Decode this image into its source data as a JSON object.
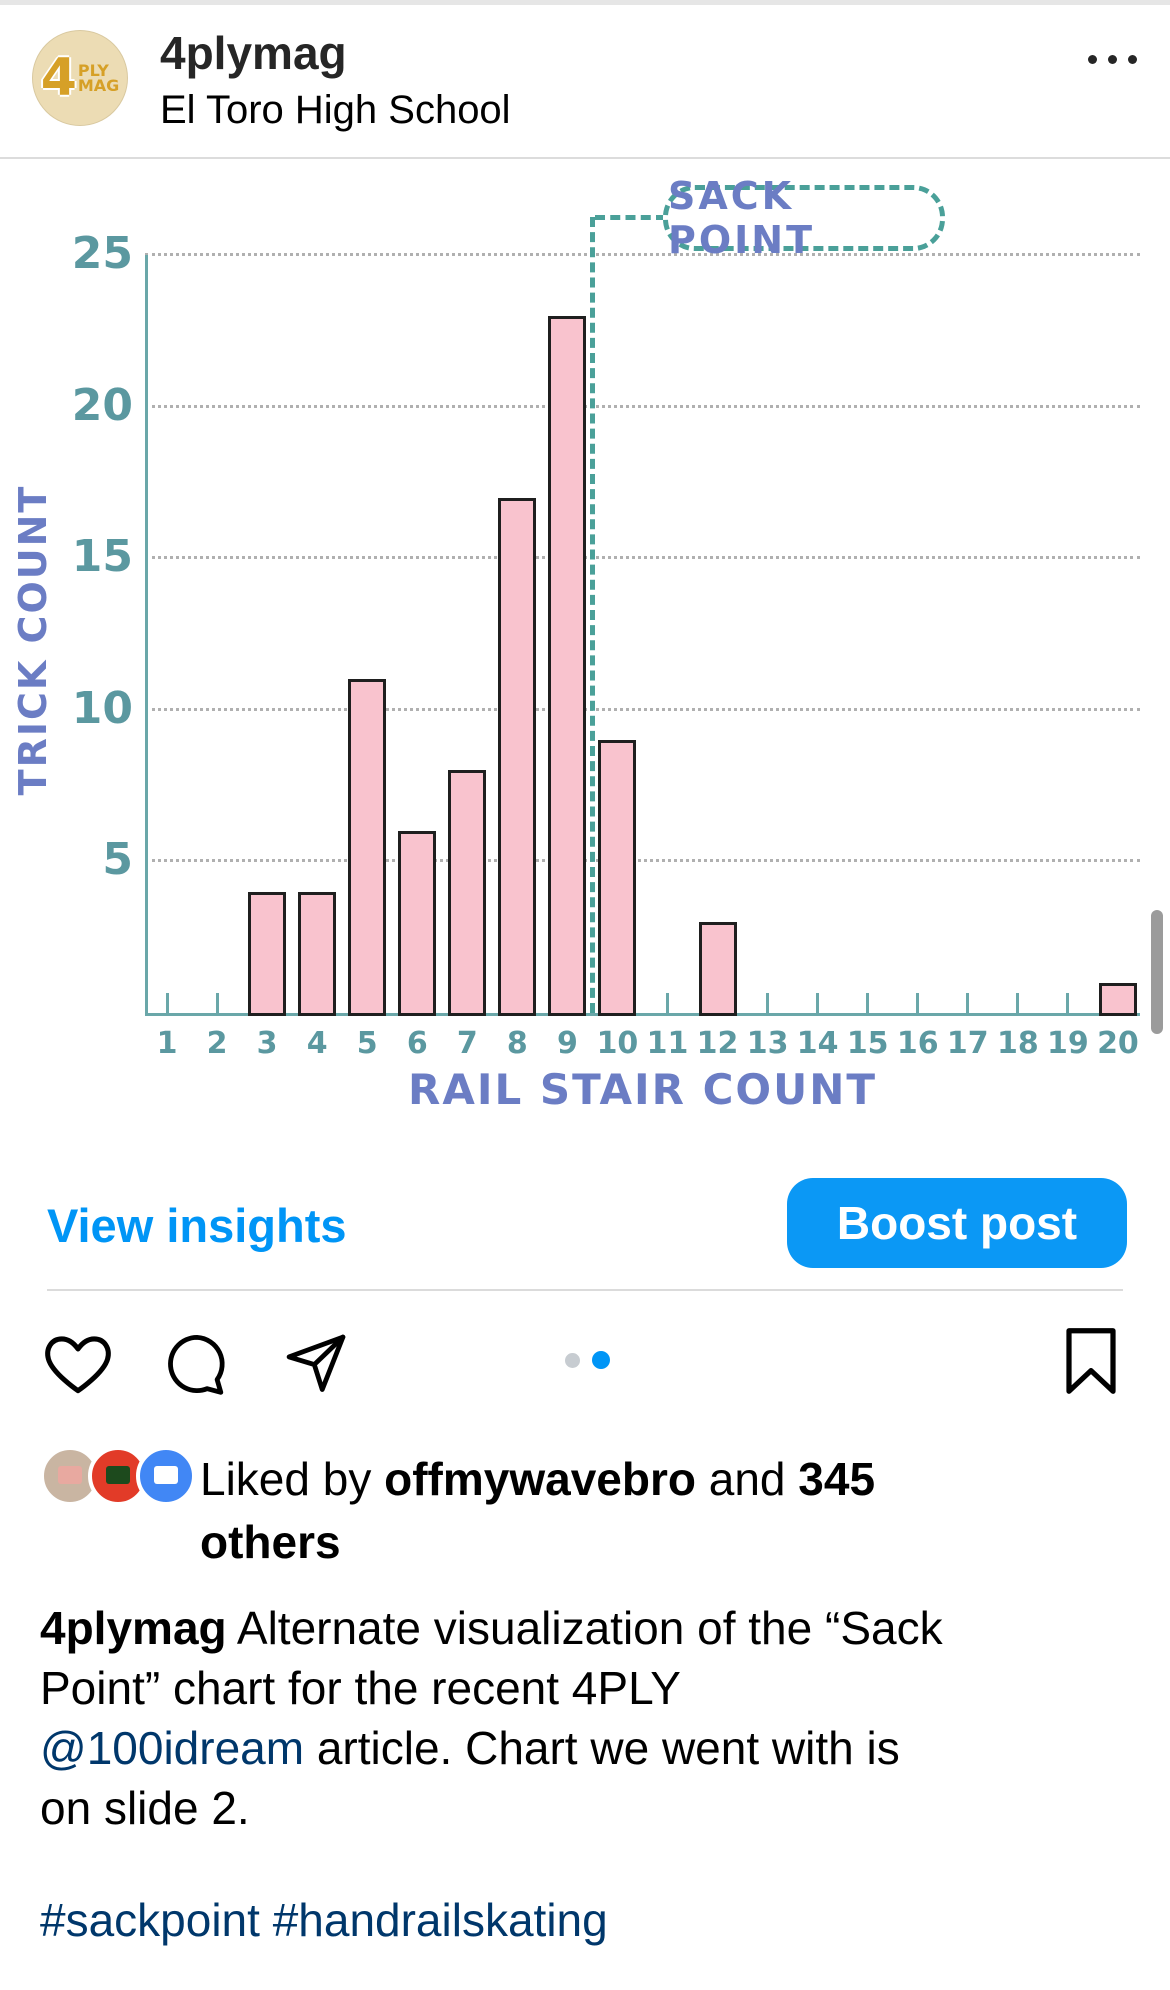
{
  "header": {
    "username": "4plymag",
    "location": "El Toro High School",
    "avatar": {
      "digit": "4",
      "line1": "PLY",
      "line2": "MAG"
    }
  },
  "chart_data": {
    "type": "bar",
    "title": "",
    "xlabel": "RAIL STAIR COUNT",
    "ylabel": "TRICK COUNT",
    "categories": [
      1,
      2,
      3,
      4,
      5,
      6,
      7,
      8,
      9,
      10,
      11,
      12,
      13,
      14,
      15,
      16,
      17,
      18,
      19,
      20
    ],
    "bars": [
      {
        "stairs": 3,
        "tricks": 4
      },
      {
        "stairs": 4,
        "tricks": 4
      },
      {
        "stairs": 5,
        "tricks": 11
      },
      {
        "stairs": 6,
        "tricks": 6
      },
      {
        "stairs": 7,
        "tricks": 8
      },
      {
        "stairs": 8,
        "tricks": 17
      },
      {
        "stairs": 9,
        "tricks": 23
      },
      {
        "stairs": 10,
        "tricks": 9
      },
      {
        "stairs": 12,
        "tricks": 3
      },
      {
        "stairs": 20,
        "tricks": 1
      }
    ],
    "y_ticks": [
      5,
      10,
      15,
      20,
      25
    ],
    "ylim": [
      0,
      25
    ],
    "grid": true,
    "annotation": {
      "label": "SACK POINT",
      "x": 9.5
    },
    "colors": {
      "bar_fill": "#f9c3ce",
      "bar_border": "#1f1f1f",
      "axis_teal": "#6aa7a9",
      "tick_label_teal": "#5b98a0",
      "axis_title_purple": "#6b7dc4",
      "gridline_gray": "#b0b0b0",
      "annotation_teal": "#4aa099"
    }
  },
  "insights": {
    "view_label": "View insights",
    "boost_label": "Boost post"
  },
  "carousel": {
    "dots": [
      {
        "active": false,
        "color": "#c7ccd1"
      },
      {
        "active": true,
        "color": "#0095f6"
      }
    ]
  },
  "likes": {
    "avatars": [
      {
        "name": "liker-avatar-1",
        "bg": "#c9b5a2",
        "inner": "#e8a9a0"
      },
      {
        "name": "liker-avatar-2",
        "bg": "#e23b28",
        "inner": "#1d4a1d"
      },
      {
        "name": "liker-avatar-3",
        "bg": "#4187f5",
        "inner": "#ffffff"
      }
    ],
    "lines": [
      [
        {
          "t": "Liked by ",
          "s": "n"
        },
        {
          "t": "offmywavebro",
          "s": "bold"
        },
        {
          "t": " and ",
          "s": "n"
        },
        {
          "t": "345",
          "s": "bold"
        }
      ],
      [
        {
          "t": "others",
          "s": "bold"
        }
      ]
    ]
  },
  "caption": {
    "lines": [
      [
        {
          "t": "4plymag",
          "s": "bold"
        },
        {
          "t": " Alternate visualization of the “Sack",
          "s": "n"
        }
      ],
      [
        {
          "t": "Point” chart for the recent 4PLY",
          "s": "n"
        }
      ],
      [
        {
          "t": "@100idream",
          "s": "link"
        },
        {
          "t": " article. Chart we went with is",
          "s": "n"
        }
      ],
      [
        {
          "t": "on slide 2.",
          "s": "n"
        }
      ]
    ],
    "hashtags": "#sackpoint #handrailskating"
  },
  "ui_colors": {
    "instagram_blue": "#0095f6",
    "link_navy": "#00376b",
    "divider": "#dbdbdb",
    "scrollbar": "#9b9b9b"
  }
}
